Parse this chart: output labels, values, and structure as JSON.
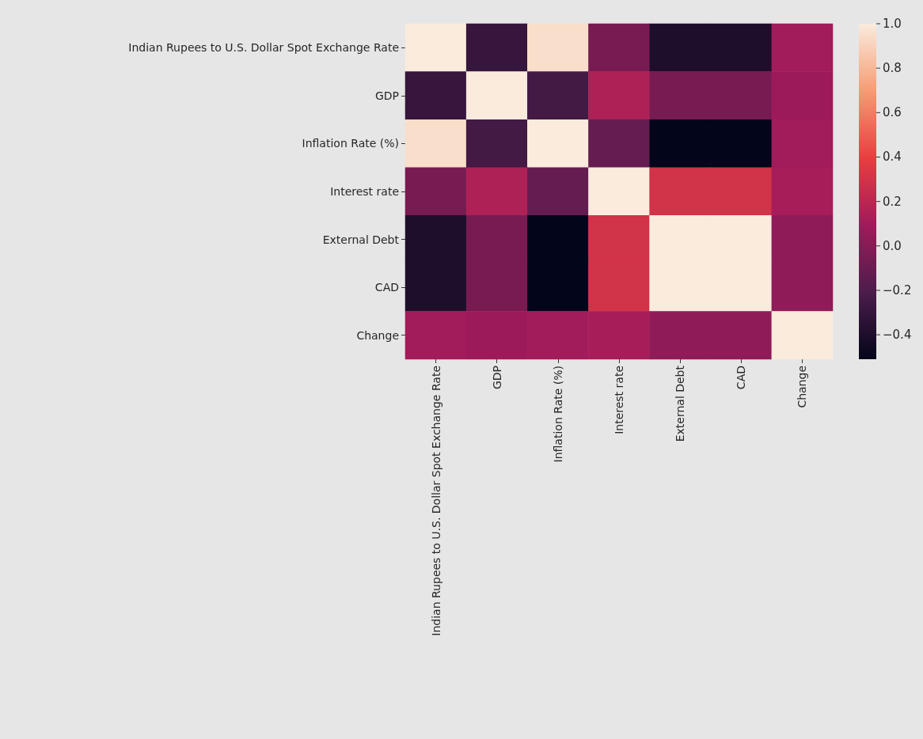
{
  "chart_data": {
    "type": "heatmap",
    "categories": [
      "Indian Rupees to U.S. Dollar Spot Exchange Rate",
      "GDP",
      "Inflation Rate (%)",
      "Interest rate",
      "External Debt",
      "CAD",
      "Change"
    ],
    "y_categories": [
      "Indian Rupees to U.S. Dollar Spot Exchange Rate",
      "GDP",
      "Inflation Rate (%)",
      "Interest rate",
      "External Debt",
      "CAD",
      "Change"
    ],
    "cells": [
      [
        1,
        -0.3,
        0.95,
        -0.05,
        -0.4,
        -0.4,
        0.1
      ],
      [
        -0.3,
        1,
        -0.25,
        0.15,
        -0.05,
        -0.05,
        0.08
      ],
      [
        0.95,
        -0.25,
        1,
        -0.12,
        -0.51,
        -0.51,
        0.1
      ],
      [
        -0.05,
        0.15,
        -0.12,
        1,
        0.3,
        0.3,
        0.12
      ],
      [
        -0.4,
        -0.05,
        -0.51,
        0.3,
        1,
        1,
        0.03
      ],
      [
        -0.4,
        -0.05,
        -0.51,
        0.3,
        1,
        1,
        0.03
      ],
      [
        0.1,
        0.08,
        0.1,
        0.12,
        0.03,
        0.03,
        1
      ]
    ],
    "clim": [
      -0.51,
      1.0
    ],
    "cticks": [
      {
        "value": -0.4,
        "label": "−0.4"
      },
      {
        "value": -0.2,
        "label": "−0.2"
      },
      {
        "value": 0,
        "label": "0.0"
      },
      0.2,
      0.4,
      0.6,
      0.8,
      {
        "value": 1,
        "label": "1.0"
      }
    ]
  }
}
